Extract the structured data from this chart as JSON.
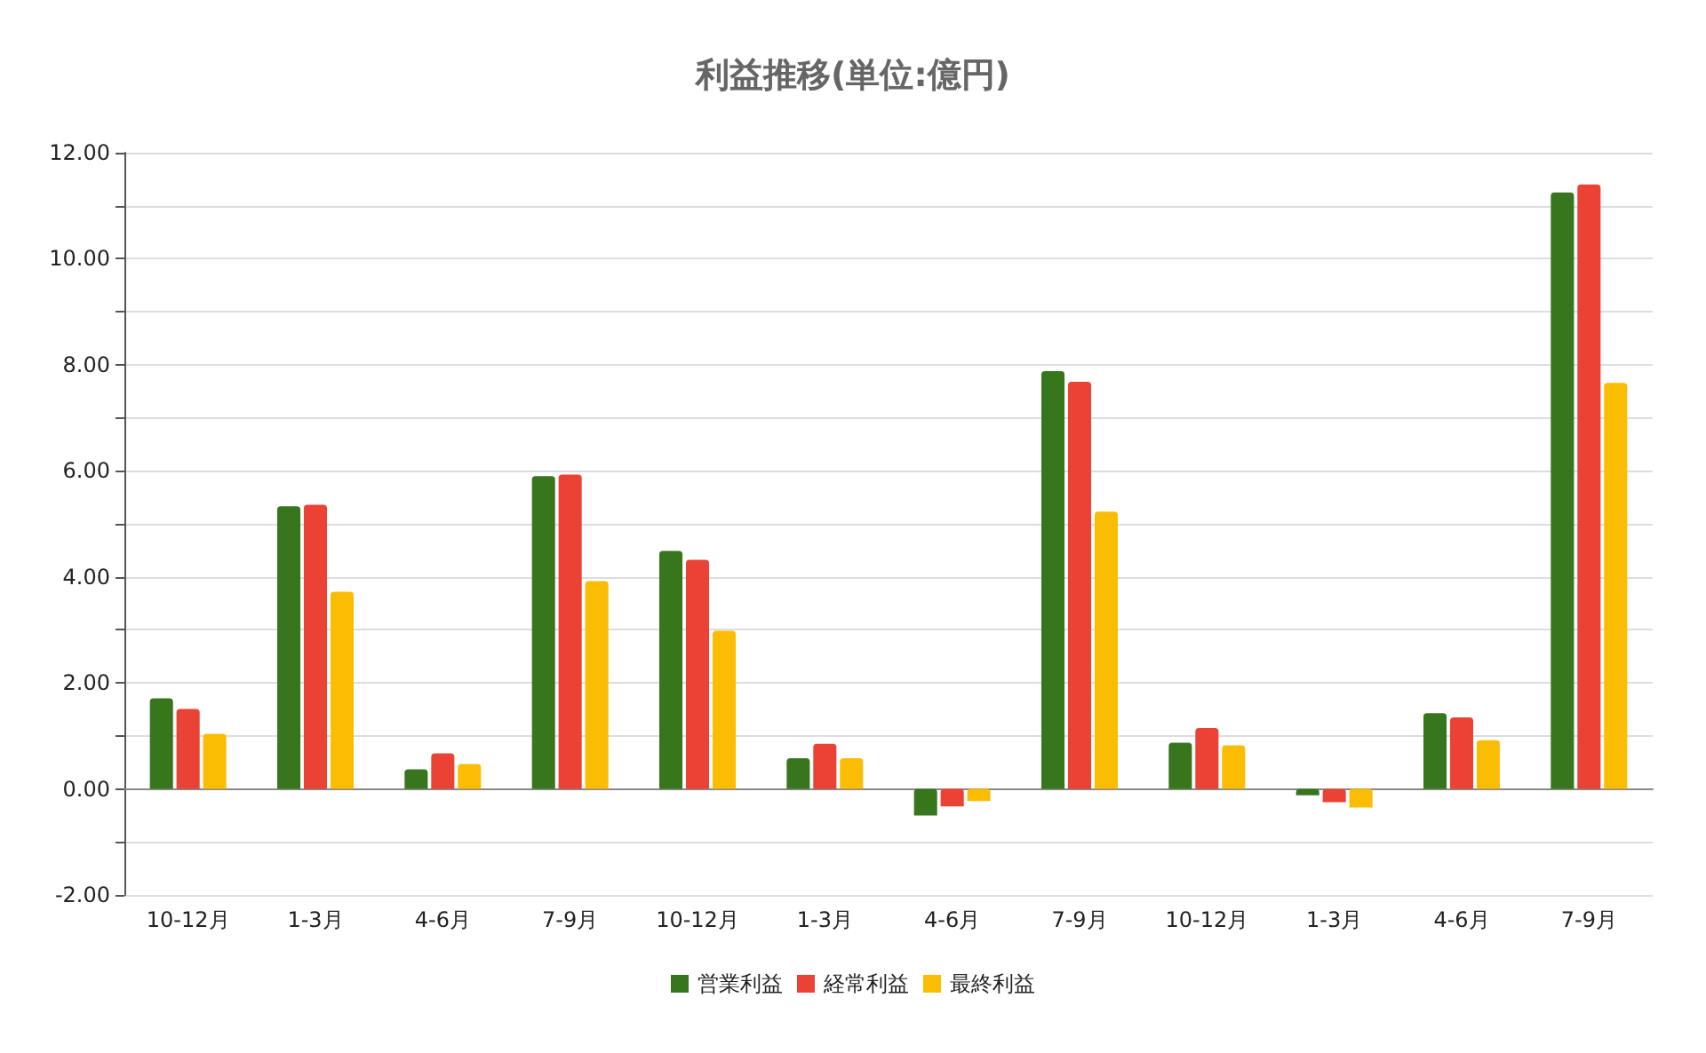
{
  "chart_data": {
    "type": "bar",
    "title": "利益推移(単位:億円)",
    "categories": [
      "10-12月",
      "1-3月",
      "4-6月",
      "7-9月",
      "10-12月",
      "1-3月",
      "4-6月",
      "7-9月",
      "10-12月",
      "1-3月",
      "4-6月",
      "7-9月"
    ],
    "series": [
      {
        "name": "営業利益",
        "color": "#38761d",
        "values": [
          1.71,
          5.33,
          0.37,
          5.9,
          4.49,
          0.58,
          -0.5,
          7.88,
          0.87,
          -0.12,
          1.43,
          11.25
        ]
      },
      {
        "name": "経常利益",
        "color": "#ea4335",
        "values": [
          1.51,
          5.36,
          0.67,
          5.93,
          4.32,
          0.85,
          -0.33,
          7.68,
          1.15,
          -0.25,
          1.35,
          11.4
        ]
      },
      {
        "name": "最終利益",
        "color": "#fbbc04",
        "values": [
          1.04,
          3.72,
          0.47,
          3.92,
          2.98,
          0.58,
          -0.23,
          5.23,
          0.82,
          -0.35,
          0.92,
          7.66
        ]
      }
    ],
    "ylim": [
      -2,
      12
    ],
    "yticks": [
      {
        "value": -2,
        "label": "-2.00"
      },
      {
        "value": -1,
        "label": null
      },
      {
        "value": 0,
        "label": "0.00"
      },
      {
        "value": 1,
        "label": null
      },
      {
        "value": 2,
        "label": "2.00"
      },
      {
        "value": 3,
        "label": null
      },
      {
        "value": 4,
        "label": "4.00"
      },
      {
        "value": 5,
        "label": null
      },
      {
        "value": 6,
        "label": "6.00"
      },
      {
        "value": 7,
        "label": null
      },
      {
        "value": 8,
        "label": "8.00"
      },
      {
        "value": 9,
        "label": null
      },
      {
        "value": 10,
        "label": "10.00"
      },
      {
        "value": 11,
        "label": null
      },
      {
        "value": 12,
        "label": "12.00"
      }
    ],
    "grid": "y",
    "legend": "bottom"
  }
}
